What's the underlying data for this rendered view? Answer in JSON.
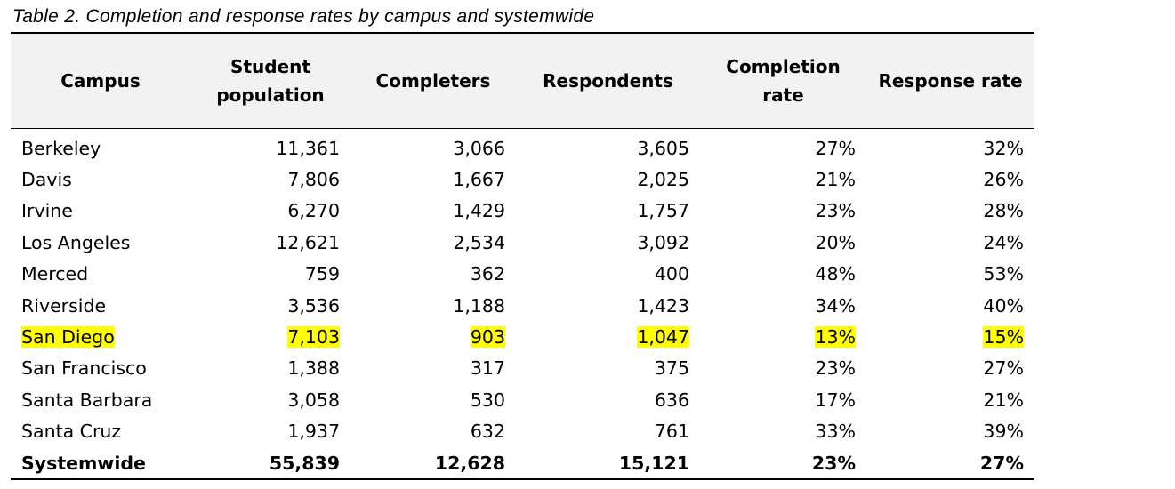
{
  "caption": "Table 2. Completion and response rates by campus and systemwide",
  "table": {
    "headers": {
      "campus": "Campus",
      "population_line1": "Student",
      "population_line2": "population",
      "completers": "Completers",
      "respondents": "Respondents",
      "completion_line1": "Completion",
      "completion_line2": "rate",
      "response_rate": "Response rate"
    },
    "highlight_color": "#ffff00",
    "rows": [
      {
        "campus": "Berkeley",
        "population": "11,361",
        "completers": "3,066",
        "respondents": "3,605",
        "completion_rate": "27%",
        "response_rate": "32%",
        "highlighted": false
      },
      {
        "campus": "Davis",
        "population": "7,806",
        "completers": "1,667",
        "respondents": "2,025",
        "completion_rate": "21%",
        "response_rate": "26%",
        "highlighted": false
      },
      {
        "campus": "Irvine",
        "population": "6,270",
        "completers": "1,429",
        "respondents": "1,757",
        "completion_rate": "23%",
        "response_rate": "28%",
        "highlighted": false
      },
      {
        "campus": "Los Angeles",
        "population": "12,621",
        "completers": "2,534",
        "respondents": "3,092",
        "completion_rate": "20%",
        "response_rate": "24%",
        "highlighted": false
      },
      {
        "campus": "Merced",
        "population": "759",
        "completers": "362",
        "respondents": "400",
        "completion_rate": "48%",
        "response_rate": "53%",
        "highlighted": false
      },
      {
        "campus": "Riverside",
        "population": "3,536",
        "completers": "1,188",
        "respondents": "1,423",
        "completion_rate": "34%",
        "response_rate": "40%",
        "highlighted": false
      },
      {
        "campus": "San Diego",
        "population": "7,103",
        "completers": "903",
        "respondents": "1,047",
        "completion_rate": "13%",
        "response_rate": "15%",
        "highlighted": true
      },
      {
        "campus": "San Francisco",
        "population": "1,388",
        "completers": "317",
        "respondents": "375",
        "completion_rate": "23%",
        "response_rate": "27%",
        "highlighted": false
      },
      {
        "campus": "Santa Barbara",
        "population": "3,058",
        "completers": "530",
        "respondents": "636",
        "completion_rate": "17%",
        "response_rate": "21%",
        "highlighted": false
      },
      {
        "campus": "Santa Cruz",
        "population": "1,937",
        "completers": "632",
        "respondents": "761",
        "completion_rate": "33%",
        "response_rate": "39%",
        "highlighted": false
      }
    ],
    "total": {
      "campus": "Systemwide",
      "population": "55,839",
      "completers": "12,628",
      "respondents": "15,121",
      "completion_rate": "23%",
      "response_rate": "27%"
    }
  }
}
